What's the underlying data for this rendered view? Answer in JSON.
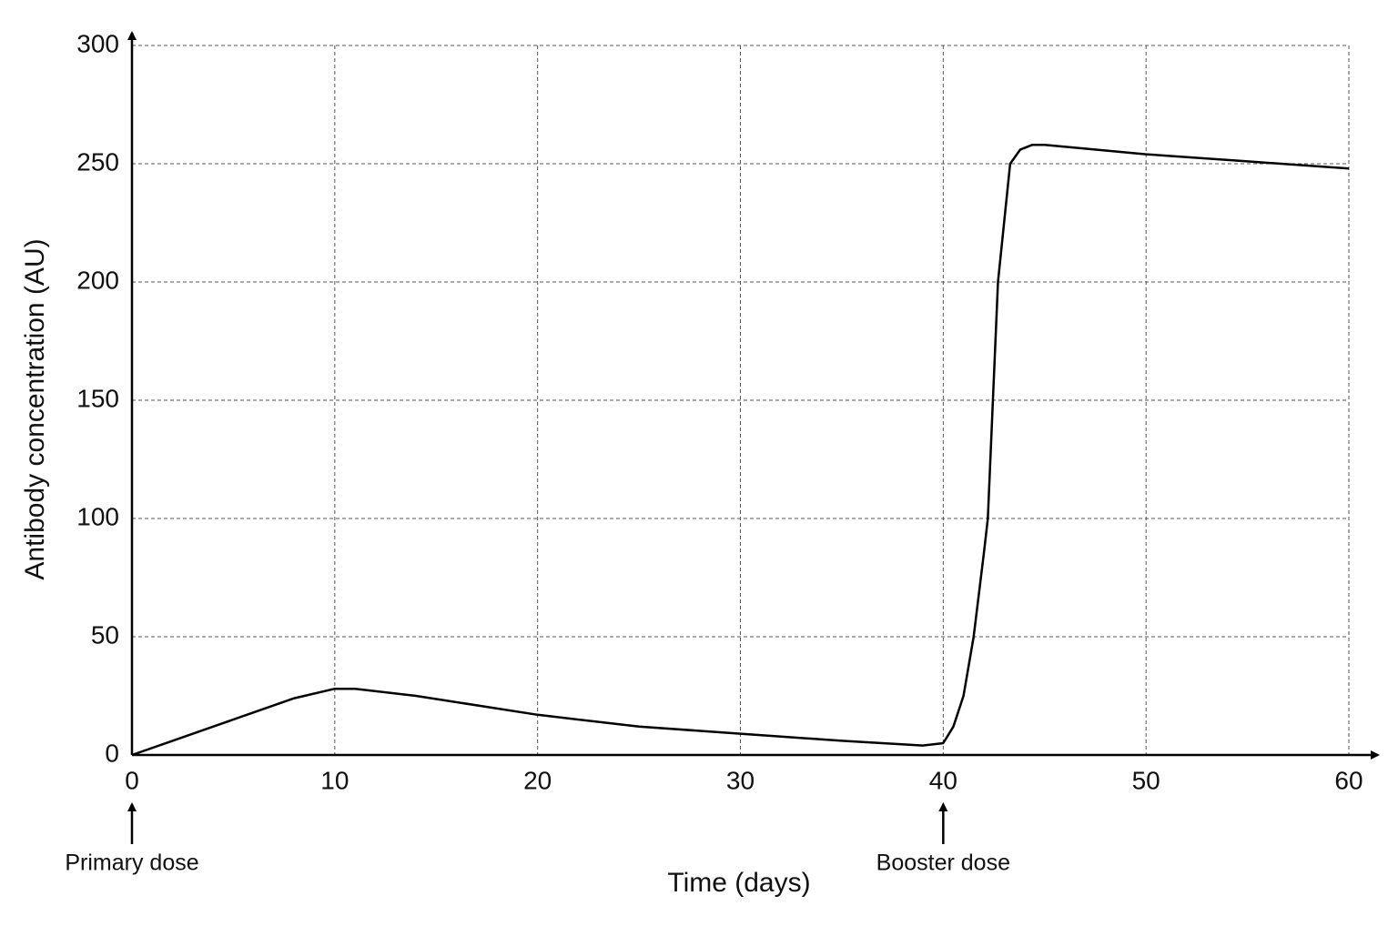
{
  "chart_data": {
    "type": "line",
    "xlabel": "Time (days)",
    "ylabel": "Antibody concentration (AU)",
    "xlim": [
      0,
      60
    ],
    "ylim": [
      0,
      300
    ],
    "xticks": [
      0,
      10,
      20,
      30,
      40,
      50,
      60
    ],
    "yticks": [
      0,
      50,
      100,
      150,
      200,
      250,
      300
    ],
    "grid": true,
    "series": [
      {
        "color": "#000000",
        "x": [
          0,
          2,
          4,
          6,
          8,
          10,
          11,
          14,
          20,
          25,
          30,
          35,
          39,
          40,
          40.5,
          41,
          41.5,
          42,
          42.2,
          42.7,
          43.3,
          43.8,
          44.4,
          45,
          50,
          55,
          60
        ],
        "values": [
          0,
          6,
          12,
          18,
          24,
          28,
          28,
          25,
          17,
          12,
          9,
          6,
          4,
          5,
          12,
          25,
          50,
          85,
          100,
          200,
          250,
          256,
          258,
          258,
          254,
          251,
          248
        ]
      }
    ],
    "annotations": [
      {
        "text": "Primary dose",
        "x": 0
      },
      {
        "text": "Booster dose",
        "x": 40
      }
    ]
  }
}
